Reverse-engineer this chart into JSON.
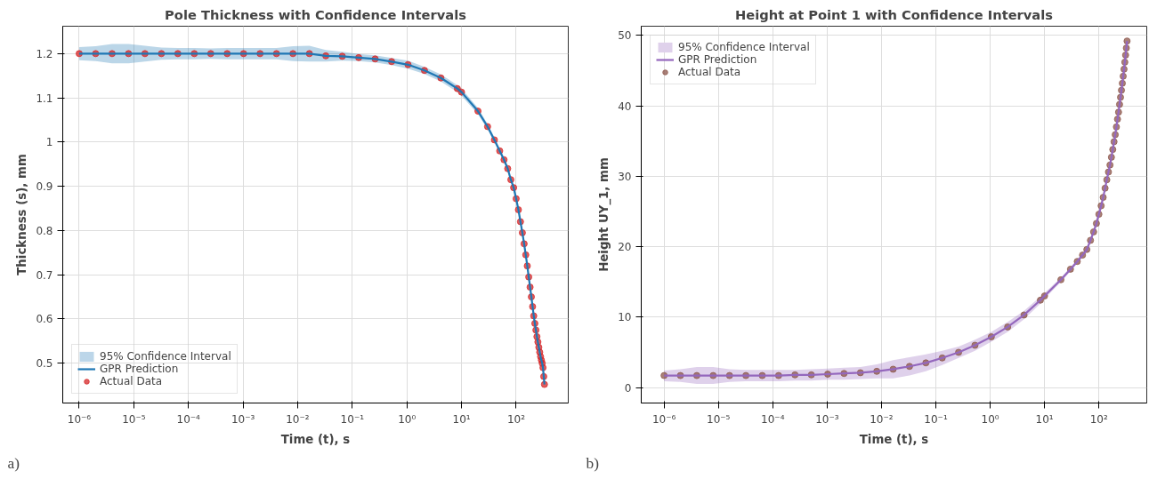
{
  "chart_data": [
    {
      "type": "line",
      "title": "Pole Thickness with Confidence Intervals",
      "xlabel": "Time (t), s",
      "ylabel": "Thickness (s), mm",
      "log": "x",
      "grid": true,
      "legend": "bottom left",
      "line_style": "solid",
      "x": [
        1e-06,
        2e-06,
        4e-06,
        8e-06,
        1.6e-05,
        3.2e-05,
        6.4e-05,
        0.000128,
        0.000256,
        0.000512,
        0.001024,
        0.002048,
        0.004096,
        0.008192,
        0.016384,
        0.032768,
        0.065536,
        0.131072,
        0.262144,
        0.524288,
        1.048576,
        2.097152,
        4.194304,
        8.388608,
        10,
        20,
        30,
        40,
        50,
        60,
        70,
        80,
        90,
        100,
        110,
        120,
        130,
        140,
        150,
        160,
        170,
        180,
        190,
        200,
        210,
        220,
        230,
        240,
        250,
        260,
        270,
        280,
        290,
        300,
        310,
        320,
        330
      ],
      "xlim": [
        5e-07,
        900
      ],
      "xticks": [
        {
          "value": 1e-06,
          "label": "10⁻⁶"
        },
        {
          "value": 1e-05,
          "label": "10⁻⁵"
        },
        {
          "value": 0.0001,
          "label": "10⁻⁴"
        },
        {
          "value": 0.001,
          "label": "10⁻³"
        },
        {
          "value": 0.01,
          "label": "10⁻²"
        },
        {
          "value": 0.1,
          "label": "10⁻¹"
        },
        {
          "value": 1,
          "label": "10⁰"
        },
        {
          "value": 10,
          "label": "10¹"
        },
        {
          "value": 100,
          "label": "10²"
        }
      ],
      "ylim": [
        0.41,
        1.262
      ],
      "yticks": [
        0.5,
        0.6,
        0.7,
        0.8,
        0.9,
        1.0,
        1.1,
        1.2
      ],
      "series": [
        {
          "name": "95% Confidence Interval",
          "type": "area",
          "color": "#bcd6e9",
          "values": [
            null,
            null,
            null,
            null,
            null,
            null,
            null,
            null,
            null,
            null,
            null,
            null,
            null,
            null,
            null,
            null,
            null,
            null,
            null,
            null,
            null,
            null,
            null,
            null,
            null,
            null,
            null,
            null,
            null,
            null,
            null,
            null,
            null,
            null,
            null,
            null,
            null,
            null,
            null,
            null,
            null,
            null,
            null,
            null,
            null,
            null,
            null,
            null,
            null,
            null,
            null,
            null,
            null,
            null,
            null,
            null,
            null
          ]
        },
        {
          "name": "GPR Prediction",
          "color": "#1f77b4",
          "values": [
            1.2,
            1.2,
            1.2,
            1.2,
            1.2,
            1.2,
            1.2,
            1.2,
            1.2,
            1.2,
            1.2,
            1.2,
            1.2,
            1.2,
            1.2,
            1.195,
            1.194,
            1.191,
            1.188,
            1.182,
            1.175,
            1.162,
            1.145,
            1.121,
            1.113,
            1.07,
            1.035,
            1.005,
            0.98,
            0.96,
            0.94,
            0.915,
            0.897,
            0.872,
            0.847,
            0.82,
            0.795,
            0.77,
            0.745,
            0.72,
            0.695,
            0.672,
            0.65,
            0.628,
            0.607,
            0.59,
            0.575,
            0.56,
            0.548,
            0.536,
            0.525,
            0.515,
            0.507,
            0.5,
            0.49,
            0.47,
            0.452
          ],
          "lower": [
            1.185,
            1.183,
            1.178,
            1.178,
            1.182,
            1.186,
            1.187,
            1.187,
            1.188,
            1.187,
            1.187,
            1.187,
            1.187,
            1.183,
            1.182,
            1.182,
            1.184,
            1.183,
            1.18,
            1.174,
            1.166,
            1.154,
            1.137,
            1.113,
            1.105,
            1.063,
            1.029,
            0.999,
            0.975,
            0.955,
            0.935,
            0.91,
            0.892,
            0.867,
            0.842,
            0.815,
            0.79,
            0.765,
            0.74,
            0.715,
            0.69,
            0.667,
            0.645,
            0.623,
            0.602,
            0.585,
            0.57,
            0.555,
            0.543,
            0.531,
            0.52,
            0.51,
            0.502,
            0.495,
            0.485,
            0.465,
            0.447
          ],
          "upper": [
            1.215,
            1.217,
            1.222,
            1.222,
            1.218,
            1.214,
            1.213,
            1.213,
            1.212,
            1.213,
            1.213,
            1.213,
            1.213,
            1.217,
            1.218,
            1.208,
            1.204,
            1.199,
            1.196,
            1.19,
            1.184,
            1.17,
            1.153,
            1.129,
            1.121,
            1.077,
            1.041,
            1.011,
            0.985,
            0.965,
            0.945,
            0.92,
            0.902,
            0.877,
            0.852,
            0.825,
            0.8,
            0.775,
            0.75,
            0.725,
            0.7,
            0.677,
            0.655,
            0.633,
            0.612,
            0.595,
            0.58,
            0.565,
            0.553,
            0.541,
            0.53,
            0.52,
            0.512,
            0.505,
            0.495,
            0.475,
            0.457
          ]
        },
        {
          "name": "Actual Data",
          "type": "scatter",
          "color": "#d62728",
          "marker": "circle",
          "values": [
            1.2,
            1.2,
            1.2,
            1.2,
            1.2,
            1.2,
            1.2,
            1.2,
            1.2,
            1.2,
            1.2,
            1.2,
            1.2,
            1.2,
            1.2,
            1.195,
            1.194,
            1.191,
            1.188,
            1.182,
            1.175,
            1.162,
            1.145,
            1.121,
            1.113,
            1.07,
            1.035,
            1.005,
            0.98,
            0.96,
            0.94,
            0.915,
            0.897,
            0.872,
            0.847,
            0.82,
            0.795,
            0.77,
            0.745,
            0.72,
            0.695,
            0.672,
            0.65,
            0.628,
            0.607,
            0.59,
            0.575,
            0.56,
            0.548,
            0.536,
            0.525,
            0.515,
            0.507,
            0.5,
            0.49,
            0.47,
            0.452
          ]
        }
      ],
      "annotations": [
        "a)"
      ]
    },
    {
      "type": "line",
      "title": "Height at Point 1 with Confidence Intervals",
      "xlabel": "Time (t), s",
      "ylabel": "Height UY_1, mm",
      "log": "x",
      "grid": true,
      "legend": "top left",
      "line_style": "solid",
      "x": [
        1e-06,
        2e-06,
        4e-06,
        8e-06,
        1.6e-05,
        3.2e-05,
        6.4e-05,
        0.000128,
        0.000256,
        0.000512,
        0.001024,
        0.002048,
        0.004096,
        0.008192,
        0.016384,
        0.032768,
        0.065536,
        0.131072,
        0.262144,
        0.524288,
        1.048576,
        2.097152,
        4.194304,
        8.388608,
        10,
        20,
        30,
        40,
        50,
        60,
        70,
        80,
        90,
        100,
        110,
        120,
        130,
        140,
        150,
        160,
        170,
        180,
        190,
        200,
        210,
        220,
        230,
        240,
        250,
        260,
        270,
        280,
        290,
        300,
        310,
        320,
        330
      ],
      "xlim": [
        3.8e-07,
        760
      ],
      "xticks": [
        {
          "value": 1e-06,
          "label": "10⁻⁶"
        },
        {
          "value": 1e-05,
          "label": "10⁻⁵"
        },
        {
          "value": 0.0001,
          "label": "10⁻⁴"
        },
        {
          "value": 0.001,
          "label": "10⁻³"
        },
        {
          "value": 0.01,
          "label": "10⁻²"
        },
        {
          "value": 0.1,
          "label": "10⁻¹"
        },
        {
          "value": 1,
          "label": "10⁰"
        },
        {
          "value": 10,
          "label": "10¹"
        },
        {
          "value": 100,
          "label": "10²"
        }
      ],
      "ylim": [
        -2.2,
        51.3
      ],
      "yticks": [
        0,
        10,
        20,
        30,
        40,
        50
      ],
      "series": [
        {
          "name": "95% Confidence Interval",
          "type": "area",
          "color": "#dfd1eb",
          "values": [
            null,
            null,
            null,
            null,
            null,
            null,
            null,
            null,
            null,
            null,
            null,
            null,
            null,
            null,
            null,
            null,
            null,
            null,
            null,
            null,
            null,
            null,
            null,
            null,
            null,
            null,
            null,
            null,
            null,
            null,
            null,
            null,
            null,
            null,
            null,
            null,
            null,
            null,
            null,
            null,
            null,
            null,
            null,
            null,
            null,
            null,
            null,
            null,
            null,
            null,
            null,
            null,
            null,
            null,
            null,
            null,
            null
          ]
        },
        {
          "name": "GPR Prediction",
          "color": "#9467bd",
          "values": [
            1.7,
            1.7,
            1.7,
            1.7,
            1.7,
            1.7,
            1.7,
            1.7,
            1.8,
            1.8,
            1.9,
            2.0,
            2.1,
            2.3,
            2.6,
            3.0,
            3.5,
            4.2,
            5.0,
            6.0,
            7.2,
            8.6,
            10.3,
            12.4,
            13.0,
            15.3,
            16.8,
            17.9,
            18.8,
            19.6,
            20.9,
            22.1,
            23.3,
            24.6,
            25.8,
            27.0,
            28.3,
            29.5,
            30.6,
            31.6,
            32.7,
            33.8,
            34.9,
            35.9,
            37.0,
            38.1,
            39.1,
            40.2,
            41.2,
            42.2,
            43.2,
            44.2,
            45.2,
            46.2,
            47.2,
            48.2,
            49.2
          ],
          "lower": [
            0.9,
            0.8,
            0.5,
            0.5,
            0.8,
            0.9,
            0.9,
            0.9,
            1.0,
            1.0,
            1.1,
            1.1,
            1.2,
            1.3,
            1.3,
            1.7,
            2.3,
            3.2,
            4.2,
            5.2,
            6.5,
            7.9,
            9.7,
            11.9,
            12.6,
            15.0,
            16.5,
            17.6,
            18.5,
            19.3,
            20.5,
            21.8,
            23.0,
            24.3,
            25.5,
            26.7,
            28.0,
            29.2,
            30.3,
            31.3,
            32.4,
            33.5,
            34.6,
            35.6,
            36.7,
            37.8,
            38.8,
            39.9,
            40.9,
            41.9,
            42.9,
            43.9,
            44.9,
            45.9,
            46.9,
            47.9,
            48.9
          ],
          "upper": [
            2.4,
            2.6,
            2.9,
            2.9,
            2.6,
            2.5,
            2.5,
            2.5,
            2.5,
            2.6,
            2.7,
            2.8,
            2.9,
            3.3,
            3.9,
            4.3,
            4.7,
            5.2,
            5.8,
            6.8,
            7.9,
            9.3,
            10.9,
            12.9,
            13.4,
            15.6,
            17.1,
            18.2,
            19.1,
            19.9,
            20.9,
            22.4,
            23.6,
            24.9,
            26.1,
            27.3,
            28.6,
            29.8,
            30.9,
            31.9,
            33.0,
            34.1,
            35.2,
            36.2,
            37.3,
            38.4,
            39.4,
            40.5,
            41.5,
            42.5,
            43.5,
            44.5,
            45.5,
            46.5,
            47.5,
            48.5,
            49.5
          ]
        },
        {
          "name": "Actual Data",
          "type": "scatter",
          "color": "#8c564b",
          "marker": "circle",
          "values": [
            1.7,
            1.7,
            1.7,
            1.7,
            1.7,
            1.7,
            1.7,
            1.7,
            1.8,
            1.8,
            1.9,
            2.0,
            2.1,
            2.3,
            2.6,
            3.0,
            3.5,
            4.2,
            5.0,
            6.0,
            7.2,
            8.6,
            10.3,
            12.4,
            13.0,
            15.3,
            16.8,
            17.9,
            18.8,
            19.6,
            20.9,
            22.1,
            23.3,
            24.6,
            25.8,
            27.0,
            28.3,
            29.5,
            30.6,
            31.6,
            32.7,
            33.8,
            34.9,
            35.9,
            37.0,
            38.1,
            39.1,
            40.2,
            41.2,
            42.2,
            43.2,
            44.2,
            45.2,
            46.2,
            47.2,
            48.2,
            49.2
          ]
        }
      ],
      "annotations": [
        "b)"
      ]
    }
  ]
}
